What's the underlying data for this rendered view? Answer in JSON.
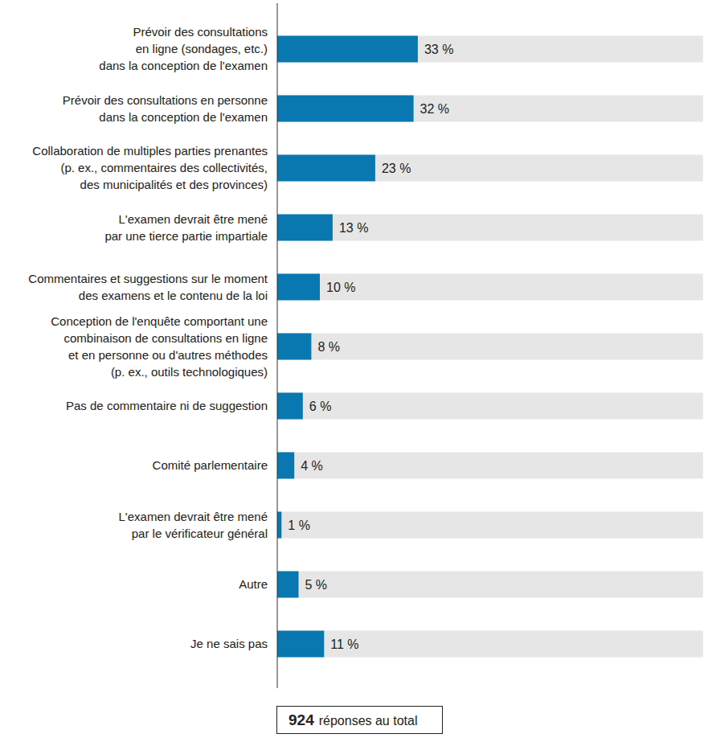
{
  "chart_data": {
    "type": "bar",
    "orientation": "horizontal",
    "categories": [
      "Prévoir des consultations\nen ligne (sondages, etc.)\ndans la conception de l'examen",
      "Prévoir des consultations en personne\ndans la conception de l'examen",
      "Collaboration de multiples parties prenantes\n(p. ex., commentaires des collectivités,\ndes municipalités et des provinces)",
      "L'examen devrait être mené\npar une tierce partie impartiale",
      "Commentaires et suggestions sur le moment\ndes examens et le contenu de la loi",
      "Conception de l'enquête comportant une\ncombinaison de consultations en ligne\net en personne ou d'autres méthodes\n(p. ex., outils technologiques)",
      "Pas de commentaire ni de suggestion",
      "Comité parlementaire",
      "L'examen devrait être mené\npar le vérificateur général",
      "Autre",
      "Je ne sais pas"
    ],
    "values": [
      33,
      32,
      23,
      13,
      10,
      8,
      6,
      4,
      1,
      5,
      11
    ],
    "value_labels": [
      "33 %",
      "32 %",
      "23 %",
      "13 %",
      "10 %",
      "8 %",
      "6 %",
      "4 %",
      "1 %",
      "5 %",
      "11 %"
    ],
    "color": "#0a78b0",
    "xlim": [
      0,
      100
    ],
    "tick_labels": false,
    "data_labels": true,
    "grid": false,
    "annotations": [
      {
        "value": 924,
        "text": "réponses au total"
      }
    ]
  }
}
